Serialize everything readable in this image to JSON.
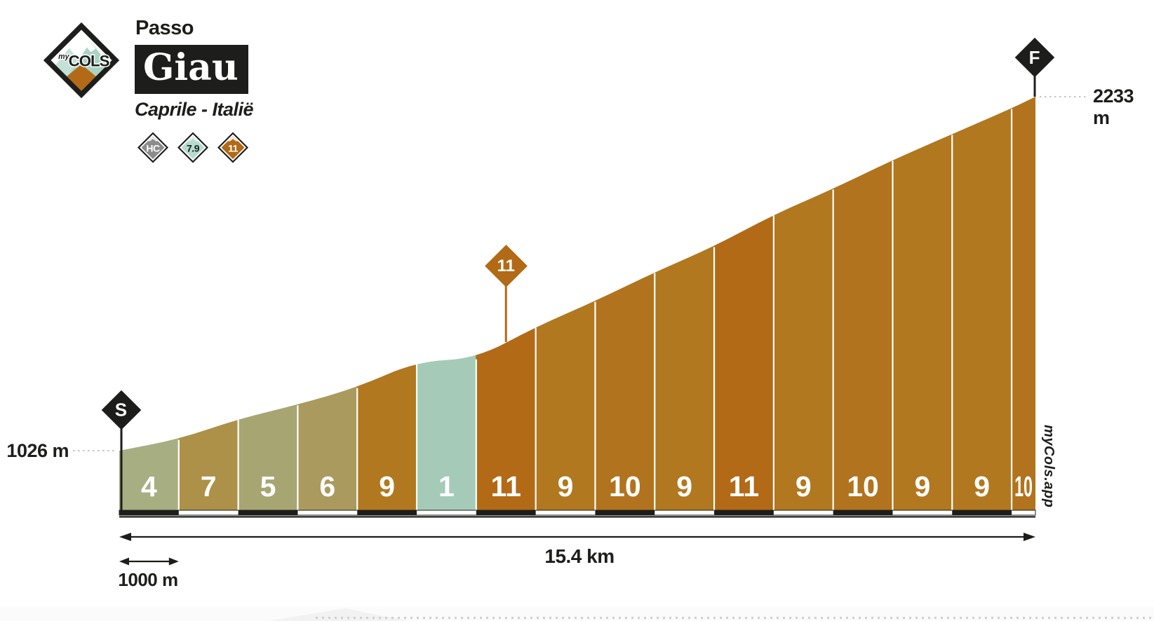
{
  "header": {
    "logo": {
      "text_small": "my",
      "text_large": "COLS"
    },
    "pretitle": "Passo",
    "title": "Giau",
    "subtitle": "Caprile - Italië",
    "badges": [
      {
        "id": "category",
        "label": "HC",
        "fill": "#8c8c8c",
        "text": "#ffffff",
        "cap": "#e9e9e9"
      },
      {
        "id": "avg-gradient",
        "label": "7.9",
        "fill": "#b6dccf",
        "text": "#1d1d1b",
        "cap": "#e3f1ea"
      },
      {
        "id": "max-gradient",
        "label": "11",
        "fill": "#b26a16",
        "text": "#ffffff",
        "cap": "#f2ead9"
      }
    ]
  },
  "chart_data": {
    "type": "area",
    "title": "Passo Giau",
    "location": "Caprile - Italië",
    "category": "HC",
    "avg_gradient_pct": 7.9,
    "max_gradient_pct": 11,
    "start": {
      "label": "S",
      "km": 0,
      "elevation_m": 1026,
      "elevation_label": "1026 m"
    },
    "finish": {
      "label": "F",
      "km": 15.4,
      "elevation_m": 2233,
      "elevation_label": "2233 m"
    },
    "total_distance_km": 15.4,
    "distance_label": "15.4 km",
    "scale_label": "1000 m",
    "watermark": "myCols.app",
    "gradient_marker": {
      "label": "11",
      "km": 6.5
    },
    "x_axis": {
      "unit": "km",
      "km_block_interval": 1
    },
    "y_axis": {
      "unit": "m"
    },
    "segments": [
      {
        "from_km": 0,
        "to_km": 1,
        "gradient_pct": 4,
        "color": "#a7ae82"
      },
      {
        "from_km": 1,
        "to_km": 2,
        "gradient_pct": 7,
        "color": "#ad9148"
      },
      {
        "from_km": 2,
        "to_km": 3,
        "gradient_pct": 5,
        "color": "#a7a673"
      },
      {
        "from_km": 3,
        "to_km": 4,
        "gradient_pct": 6,
        "color": "#aa9a5d"
      },
      {
        "from_km": 4,
        "to_km": 5,
        "gradient_pct": 9,
        "color": "#b1781f"
      },
      {
        "from_km": 5,
        "to_km": 6,
        "gradient_pct": 1,
        "color": "#a5cbb8"
      },
      {
        "from_km": 6,
        "to_km": 7,
        "gradient_pct": 11,
        "color": "#b26a16"
      },
      {
        "from_km": 7,
        "to_km": 8,
        "gradient_pct": 9,
        "color": "#b1781f"
      },
      {
        "from_km": 8,
        "to_km": 9,
        "gradient_pct": 10,
        "color": "#b1731d"
      },
      {
        "from_km": 9,
        "to_km": 10,
        "gradient_pct": 9,
        "color": "#b1781f"
      },
      {
        "from_km": 10,
        "to_km": 11,
        "gradient_pct": 11,
        "color": "#b26a16"
      },
      {
        "from_km": 11,
        "to_km": 12,
        "gradient_pct": 9,
        "color": "#b1781f"
      },
      {
        "from_km": 12,
        "to_km": 13,
        "gradient_pct": 10,
        "color": "#b1731d"
      },
      {
        "from_km": 13,
        "to_km": 14,
        "gradient_pct": 9,
        "color": "#b1781f"
      },
      {
        "from_km": 14,
        "to_km": 15,
        "gradient_pct": 9,
        "color": "#b1781f"
      },
      {
        "from_km": 15,
        "to_km": 15.4,
        "gradient_pct": 10,
        "color": "#b1731d"
      }
    ]
  }
}
